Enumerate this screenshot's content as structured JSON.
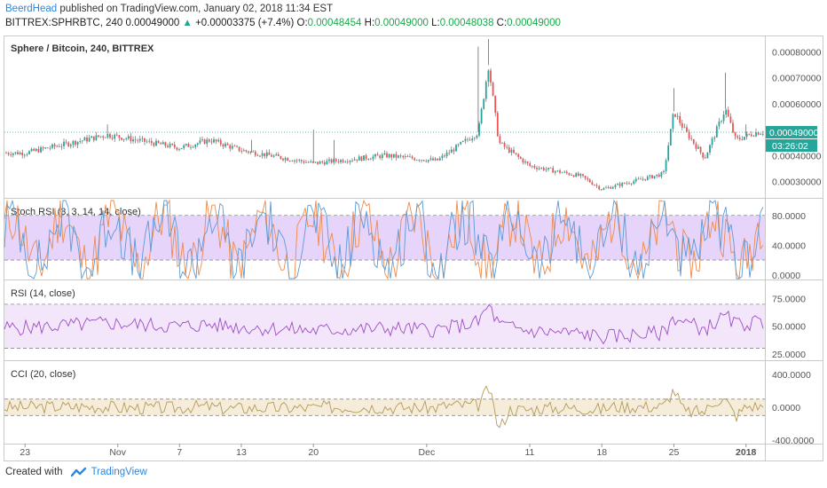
{
  "header": {
    "author": "BeerdHead",
    "published_text": "published on TradingView.com, January 02, 2018 11:34 EST",
    "symbol": "BITTREX:SPHRBTC, 240",
    "last": "0.00049000",
    "change_arrow": "▲",
    "change": "+0.00003375 (+7.4%)",
    "o_label": "O:",
    "o_value": "0.00048454",
    "h_label": "H:",
    "h_value": "0.00049000",
    "l_label": "L:",
    "l_value": "0.00048038",
    "c_label": "C:",
    "c_value": "0.00049000"
  },
  "footer": {
    "created_with": "Created with",
    "brand": "TradingView"
  },
  "colors": {
    "up": "#26a69a",
    "down": "#ef5350",
    "accent": "#2e86de",
    "stoch_fill": "#e7d4fb",
    "rsi_fill": "#f3e6fb",
    "cci_fill": "#f5ecda"
  },
  "chart_data": [
    {
      "type": "candlestick",
      "title": "Sphere / Bitcoin, 240, BITTREX",
      "y_axis_ticks": [
        "0.00080000",
        "0.00070000",
        "0.00060000",
        "0.00040000",
        "0.00030000"
      ],
      "ylim": [
        0.00024,
        0.00086
      ],
      "last_price_label": "0.00049000",
      "countdown_label": "03:26:02",
      "series_close_approx": [
        {
          "x": "2017-10-23",
          "y": 0.00041
        },
        {
          "x": "2017-10-31",
          "y": 0.00048
        },
        {
          "x": "2017-11-07",
          "y": 0.00043
        },
        {
          "x": "2017-11-10",
          "y": 0.00046
        },
        {
          "x": "2017-11-13",
          "y": 0.00042
        },
        {
          "x": "2017-11-20",
          "y": 0.00037
        },
        {
          "x": "2017-11-27",
          "y": 0.0004
        },
        {
          "x": "2017-12-02",
          "y": 0.00038
        },
        {
          "x": "2017-12-06",
          "y": 0.00049
        },
        {
          "x": "2017-12-07",
          "y": 0.00075
        },
        {
          "x": "2017-12-08",
          "y": 0.00045
        },
        {
          "x": "2017-12-11",
          "y": 0.00036
        },
        {
          "x": "2017-12-16",
          "y": 0.00032
        },
        {
          "x": "2017-12-18",
          "y": 0.00027
        },
        {
          "x": "2017-12-22",
          "y": 0.00031
        },
        {
          "x": "2017-12-24",
          "y": 0.00033
        },
        {
          "x": "2017-12-25",
          "y": 0.00057
        },
        {
          "x": "2017-12-26",
          "y": 0.0005
        },
        {
          "x": "2017-12-28",
          "y": 0.00039
        },
        {
          "x": "2017-12-30",
          "y": 0.00058
        },
        {
          "x": "2017-12-31",
          "y": 0.00046
        },
        {
          "x": "2018-01-02",
          "y": 0.00049
        }
      ]
    },
    {
      "type": "line",
      "title": "Stoch RSI (3, 3, 14, 14, close)",
      "y_axis_ticks": [
        "80.0000",
        "40.0000",
        "0.0000"
      ],
      "ylim": [
        -5,
        100
      ],
      "band": [
        20,
        80
      ]
    },
    {
      "type": "line",
      "title": "RSI (14, close)",
      "y_axis_ticks": [
        "75.0000",
        "50.0000",
        "25.0000"
      ],
      "ylim": [
        20,
        90
      ],
      "band": [
        30,
        70
      ]
    },
    {
      "type": "line",
      "title": "CCI (20, close)",
      "y_axis_ticks": [
        "400.0000",
        "0.0000",
        "-400.0000"
      ],
      "ylim": [
        -420,
        540
      ],
      "band": [
        -100,
        100
      ]
    }
  ],
  "x_axis_ticks": [
    "23",
    "Nov",
    "7",
    "13",
    "20",
    "Dec",
    "11",
    "18",
    "25",
    "2018"
  ]
}
